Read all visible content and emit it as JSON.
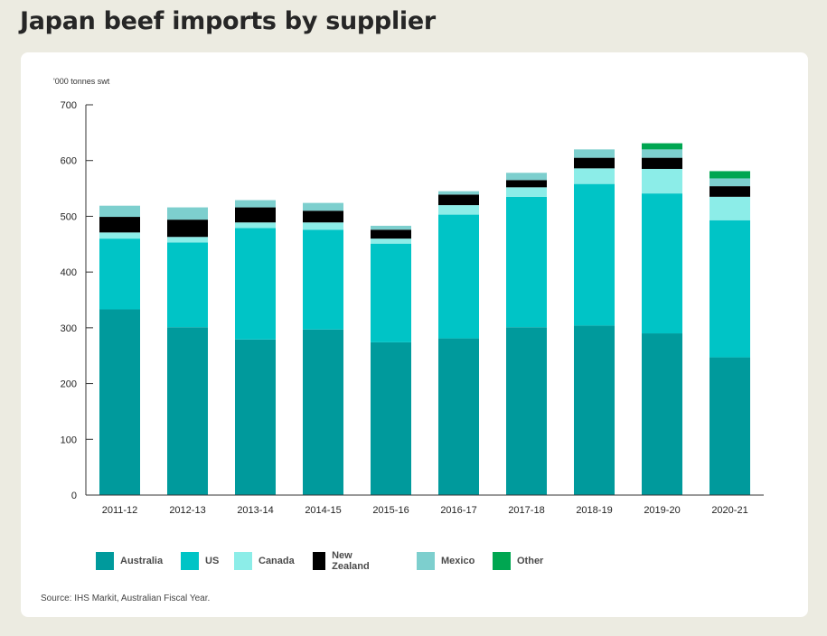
{
  "title": "Japan beef imports by supplier",
  "source": "Source: IHS Markit, Australian Fiscal Year.",
  "chart_data": {
    "type": "bar",
    "stacked": true,
    "ylabel": "'000 tonnes swt",
    "ylim": [
      0,
      700
    ],
    "yticks": [
      "0",
      "100",
      "200",
      "300",
      "400",
      "500",
      "600",
      "700"
    ],
    "yticks_values": [
      0,
      100,
      200,
      300,
      400,
      500,
      600,
      700
    ],
    "grid": false,
    "legend_position": "bottom",
    "categories": [
      "2011-12",
      "2012-13",
      "2013-14",
      "2014-15",
      "2015-16",
      "2016-17",
      "2017-18",
      "2018-19",
      "2019-20",
      "2020-21"
    ],
    "series": [
      {
        "name": "Australia",
        "color": "#009a9c",
        "values": [
          333,
          301,
          279,
          297,
          274,
          281,
          301,
          304,
          290,
          247
        ]
      },
      {
        "name": "US",
        "color": "#00c4c6",
        "values": [
          127,
          152,
          200,
          179,
          177,
          222,
          234,
          254,
          251,
          246
        ]
      },
      {
        "name": "Canada",
        "color": "#8cede8",
        "values": [
          11,
          10,
          10,
          13,
          9,
          17,
          17,
          28,
          44,
          42
        ]
      },
      {
        "name": "New Zealand",
        "color": "#000000",
        "values": [
          28,
          31,
          27,
          21,
          16,
          19,
          13,
          19,
          20,
          19
        ]
      },
      {
        "name": "Mexico",
        "color": "#7dcfce",
        "values": [
          20,
          22,
          13,
          14,
          7,
          6,
          13,
          15,
          15,
          14
        ]
      },
      {
        "name": "Other",
        "color": "#00a651",
        "values": [
          0,
          0,
          0,
          0,
          0,
          0,
          0,
          0,
          11,
          13
        ]
      }
    ]
  }
}
